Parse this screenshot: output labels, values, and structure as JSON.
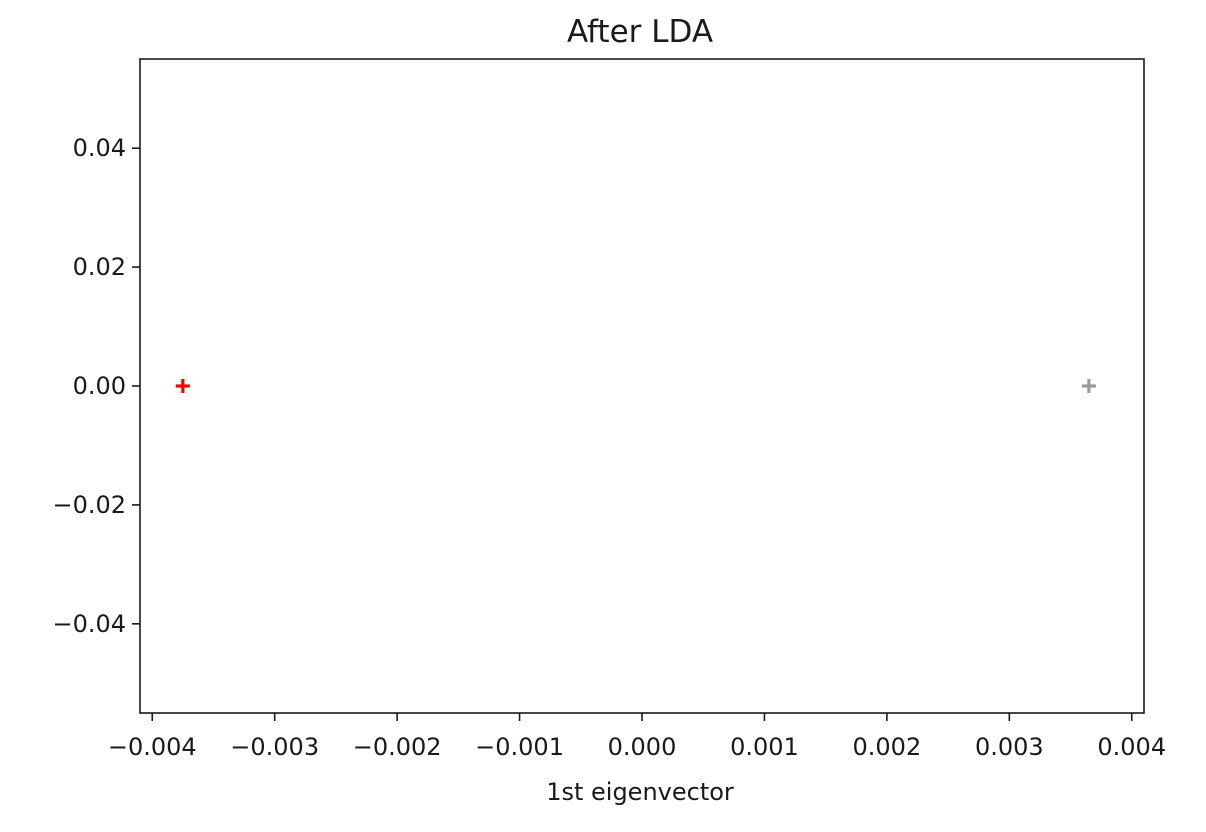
{
  "chart_data": {
    "type": "scatter",
    "title": "After LDA",
    "xlabel": "1st eigenvector",
    "ylabel": "",
    "xlim": [
      -0.0041,
      0.0041
    ],
    "ylim": [
      -0.055,
      0.055
    ],
    "xticks": [
      -0.004,
      -0.003,
      -0.002,
      -0.001,
      0.0,
      0.001,
      0.002,
      0.003,
      0.004
    ],
    "xtick_labels": [
      "−0.004",
      "−0.003",
      "−0.002",
      "−0.001",
      "0.000",
      "0.001",
      "0.002",
      "0.003",
      "0.004"
    ],
    "yticks": [
      0.04,
      0.02,
      0.0,
      -0.02,
      -0.04
    ],
    "ytick_labels": [
      "0.04",
      "0.02",
      "0.00",
      "−0.02",
      "−0.04"
    ],
    "grid": false,
    "marker": "plus",
    "series": [
      {
        "color": "#ff0000",
        "points": [
          {
            "x": -0.00375,
            "y": 0.0
          }
        ]
      },
      {
        "color": "#999999",
        "points": [
          {
            "x": 0.00365,
            "y": 0.0
          }
        ]
      }
    ]
  }
}
